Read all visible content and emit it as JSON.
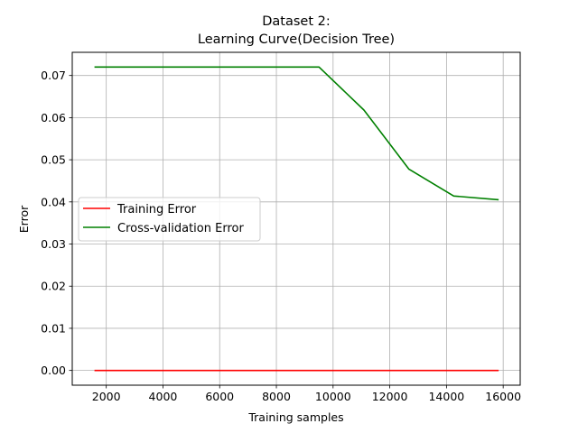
{
  "chart_data": {
    "type": "line",
    "title_line1": "Dataset 2:",
    "title_line2": "Learning Curve(Decision Tree)",
    "xlabel": "Training samples",
    "ylabel": "Error",
    "xlim": [
      800,
      16600
    ],
    "ylim": [
      -0.0035,
      0.0755
    ],
    "xticks": [
      2000,
      4000,
      6000,
      8000,
      10000,
      12000,
      14000,
      16000
    ],
    "xtick_labels": [
      "2000",
      "4000",
      "6000",
      "8000",
      "10000",
      "12000",
      "14000",
      "16000"
    ],
    "yticks": [
      0.0,
      0.01,
      0.02,
      0.03,
      0.04,
      0.05,
      0.06,
      0.07
    ],
    "ytick_labels": [
      "0.00",
      "0.01",
      "0.02",
      "0.03",
      "0.04",
      "0.05",
      "0.06",
      "0.07"
    ],
    "grid": true,
    "legend_position": "center-left",
    "series": [
      {
        "name": "Training Error",
        "color": "#ff0000",
        "x": [
          1584,
          3168,
          4752,
          6336,
          7920,
          9504,
          11088,
          12672,
          14256,
          15840
        ],
        "y": [
          0.0,
          0.0,
          0.0,
          0.0,
          0.0,
          0.0,
          0.0,
          0.0,
          0.0,
          0.0
        ]
      },
      {
        "name": "Cross-validation Error",
        "color": "#008000",
        "x": [
          1584,
          3168,
          4752,
          6336,
          7920,
          9504,
          11088,
          12672,
          14256,
          15840
        ],
        "y": [
          0.072,
          0.072,
          0.072,
          0.072,
          0.072,
          0.072,
          0.0618,
          0.0478,
          0.0414,
          0.0405
        ]
      }
    ]
  }
}
